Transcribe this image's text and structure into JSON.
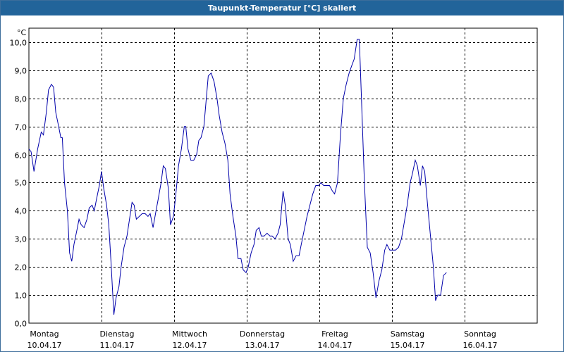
{
  "window": {
    "title": "Taupunkt-Temperatur [°C] skaliert"
  },
  "colors": {
    "titlebar": "#22649a",
    "line": "#0000aa",
    "grid": "#000000"
  },
  "chart_data": {
    "type": "line",
    "title": "Taupunkt-Temperatur [°C] skaliert",
    "ylabel": "°C",
    "xlabel": "",
    "ylim": [
      0,
      10.5
    ],
    "yticks": [
      {
        "v": 0,
        "label": "0,0"
      },
      {
        "v": 1,
        "label": "1,0"
      },
      {
        "v": 2,
        "label": "2,0"
      },
      {
        "v": 3,
        "label": "3,0"
      },
      {
        "v": 4,
        "label": "4,0"
      },
      {
        "v": 5,
        "label": "5,0"
      },
      {
        "v": 6,
        "label": "6,0"
      },
      {
        "v": 7,
        "label": "7,0"
      },
      {
        "v": 8,
        "label": "8,0"
      },
      {
        "v": 9,
        "label": "9,0"
      },
      {
        "v": 10,
        "label": "10,0"
      }
    ],
    "xlim": [
      0,
      7.0
    ],
    "xticks": [
      {
        "day": "Montag",
        "date": "10.04.17"
      },
      {
        "day": "Dienstag",
        "date": "11.04.17"
      },
      {
        "day": "Mittwoch",
        "date": "12.04.17"
      },
      {
        "day": "Donnerstag",
        "date": "13.04.17"
      },
      {
        "day": "Freitag",
        "date": "14.04.17"
      },
      {
        "day": "Samstag",
        "date": "15.04.17"
      },
      {
        "day": "Sonntag",
        "date": "16.04.17"
      }
    ],
    "grid": true,
    "series": [
      {
        "values": [
          [
            0.0,
            6.2
          ],
          [
            0.03,
            6.1
          ],
          [
            0.07,
            5.4
          ],
          [
            0.12,
            6.2
          ],
          [
            0.17,
            6.8
          ],
          [
            0.2,
            6.7
          ],
          [
            0.24,
            7.5
          ],
          [
            0.27,
            8.3
          ],
          [
            0.31,
            8.5
          ],
          [
            0.34,
            8.4
          ],
          [
            0.37,
            7.5
          ],
          [
            0.41,
            7.0
          ],
          [
            0.44,
            6.6
          ],
          [
            0.46,
            6.6
          ],
          [
            0.49,
            5.0
          ],
          [
            0.53,
            4.0
          ],
          [
            0.56,
            2.5
          ],
          [
            0.59,
            2.2
          ],
          [
            0.62,
            2.8
          ],
          [
            0.66,
            3.3
          ],
          [
            0.69,
            3.7
          ],
          [
            0.72,
            3.5
          ],
          [
            0.76,
            3.4
          ],
          [
            0.8,
            3.7
          ],
          [
            0.83,
            4.1
          ],
          [
            0.87,
            4.2
          ],
          [
            0.9,
            4.0
          ],
          [
            0.93,
            4.4
          ],
          [
            0.97,
            4.9
          ],
          [
            1.0,
            5.4
          ],
          [
            1.03,
            4.8
          ],
          [
            1.07,
            4.2
          ],
          [
            1.1,
            3.5
          ],
          [
            1.13,
            2.2
          ],
          [
            1.17,
            0.3
          ],
          [
            1.2,
            0.9
          ],
          [
            1.24,
            1.3
          ],
          [
            1.27,
            2.0
          ],
          [
            1.31,
            2.7
          ],
          [
            1.35,
            3.1
          ],
          [
            1.38,
            3.6
          ],
          [
            1.42,
            4.3
          ],
          [
            1.45,
            4.2
          ],
          [
            1.48,
            3.7
          ],
          [
            1.52,
            3.8
          ],
          [
            1.56,
            3.9
          ],
          [
            1.6,
            3.9
          ],
          [
            1.64,
            3.8
          ],
          [
            1.67,
            3.9
          ],
          [
            1.71,
            3.4
          ],
          [
            1.75,
            4.0
          ],
          [
            1.78,
            4.4
          ],
          [
            1.82,
            5.0
          ],
          [
            1.85,
            5.6
          ],
          [
            1.88,
            5.5
          ],
          [
            1.92,
            4.8
          ],
          [
            1.95,
            3.5
          ],
          [
            1.99,
            3.8
          ],
          [
            2.02,
            4.5
          ],
          [
            2.06,
            5.6
          ],
          [
            2.1,
            6.2
          ],
          [
            2.14,
            7.0
          ],
          [
            2.16,
            7.0
          ],
          [
            2.19,
            6.2
          ],
          [
            2.23,
            5.8
          ],
          [
            2.27,
            5.8
          ],
          [
            2.31,
            6.0
          ],
          [
            2.34,
            6.5
          ],
          [
            2.37,
            6.6
          ],
          [
            2.41,
            7.0
          ],
          [
            2.44,
            7.9
          ],
          [
            2.47,
            8.8
          ],
          [
            2.51,
            8.9
          ],
          [
            2.55,
            8.6
          ],
          [
            2.59,
            8.0
          ],
          [
            2.62,
            7.4
          ],
          [
            2.66,
            6.8
          ],
          [
            2.7,
            6.4
          ],
          [
            2.74,
            5.8
          ],
          [
            2.77,
            4.6
          ],
          [
            2.81,
            3.8
          ],
          [
            2.85,
            3.1
          ],
          [
            2.88,
            2.3
          ],
          [
            2.92,
            2.3
          ],
          [
            2.95,
            1.9
          ],
          [
            2.99,
            1.8
          ],
          [
            3.02,
            2.0
          ],
          [
            3.06,
            2.5
          ],
          [
            3.1,
            2.8
          ],
          [
            3.13,
            3.3
          ],
          [
            3.17,
            3.4
          ],
          [
            3.2,
            3.1
          ],
          [
            3.24,
            3.1
          ],
          [
            3.28,
            3.2
          ],
          [
            3.32,
            3.1
          ],
          [
            3.35,
            3.1
          ],
          [
            3.39,
            3.0
          ],
          [
            3.43,
            3.2
          ],
          [
            3.46,
            3.5
          ],
          [
            3.5,
            4.7
          ],
          [
            3.53,
            4.2
          ],
          [
            3.57,
            3.0
          ],
          [
            3.6,
            2.8
          ],
          [
            3.64,
            2.2
          ],
          [
            3.68,
            2.4
          ],
          [
            3.72,
            2.4
          ],
          [
            3.75,
            2.8
          ],
          [
            3.79,
            3.3
          ],
          [
            3.83,
            3.8
          ],
          [
            3.87,
            4.2
          ],
          [
            3.91,
            4.6
          ],
          [
            3.95,
            4.9
          ],
          [
            3.99,
            4.9
          ],
          [
            4.02,
            5.0
          ],
          [
            4.06,
            4.9
          ],
          [
            4.1,
            4.9
          ],
          [
            4.14,
            4.9
          ],
          [
            4.18,
            4.7
          ],
          [
            4.21,
            4.6
          ],
          [
            4.25,
            5.0
          ],
          [
            4.29,
            6.7
          ],
          [
            4.33,
            8.0
          ],
          [
            4.37,
            8.5
          ],
          [
            4.41,
            8.9
          ],
          [
            4.45,
            9.2
          ],
          [
            4.48,
            9.4
          ],
          [
            4.52,
            10.1
          ],
          [
            4.55,
            10.1
          ],
          [
            4.58,
            8.0
          ],
          [
            4.62,
            5.0
          ],
          [
            4.66,
            2.7
          ],
          [
            4.7,
            2.5
          ],
          [
            4.74,
            1.8
          ],
          [
            4.78,
            0.9
          ],
          [
            4.82,
            1.5
          ],
          [
            4.86,
            1.9
          ],
          [
            4.9,
            2.6
          ],
          [
            4.93,
            2.8
          ],
          [
            4.97,
            2.6
          ],
          [
            5.01,
            2.6
          ],
          [
            5.05,
            2.6
          ],
          [
            5.09,
            2.7
          ],
          [
            5.13,
            3.0
          ],
          [
            5.17,
            3.6
          ],
          [
            5.21,
            4.2
          ],
          [
            5.25,
            5.0
          ],
          [
            5.28,
            5.3
          ],
          [
            5.32,
            5.8
          ],
          [
            5.35,
            5.6
          ],
          [
            5.39,
            4.9
          ],
          [
            5.42,
            5.6
          ],
          [
            5.45,
            5.4
          ],
          [
            5.49,
            4.2
          ],
          [
            5.53,
            3.1
          ],
          [
            5.57,
            2.0
          ],
          [
            5.6,
            0.8
          ],
          [
            5.63,
            1.0
          ],
          [
            5.67,
            1.0
          ],
          [
            5.71,
            1.7
          ],
          [
            5.75,
            1.8
          ]
        ]
      }
    ]
  }
}
